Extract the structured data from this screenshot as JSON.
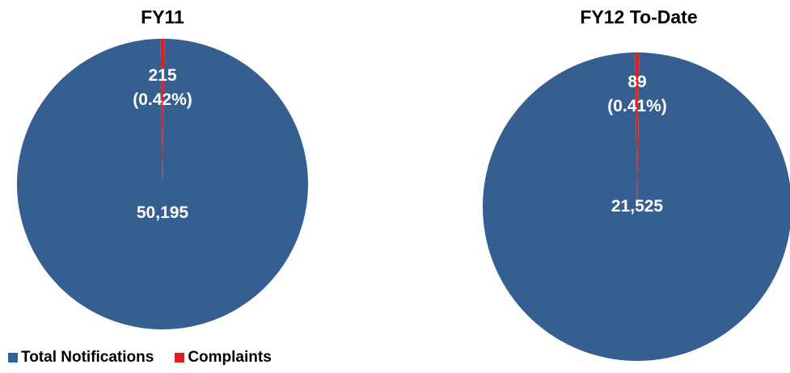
{
  "chart_data": [
    {
      "type": "pie",
      "title": "FY11",
      "slices": [
        {
          "name": "Total Notifications",
          "value": 50195,
          "label": "50,195",
          "color": "#365F91"
        },
        {
          "name": "Complaints",
          "value": 215,
          "label": "215",
          "percent_label": "(0.42%)",
          "color": "#E11F1F"
        }
      ]
    },
    {
      "type": "pie",
      "title": "FY12 To-Date",
      "slices": [
        {
          "name": "Total Notifications",
          "value": 21525,
          "label": "21,525",
          "color": "#365F91"
        },
        {
          "name": "Complaints",
          "value": 89,
          "label": "89",
          "percent_label": "(0.41%)",
          "color": "#E11F1F"
        }
      ]
    }
  ],
  "legend": [
    {
      "name": "Total Notifications",
      "color": "#365F91"
    },
    {
      "name": "Complaints",
      "color": "#E11F1F"
    }
  ]
}
